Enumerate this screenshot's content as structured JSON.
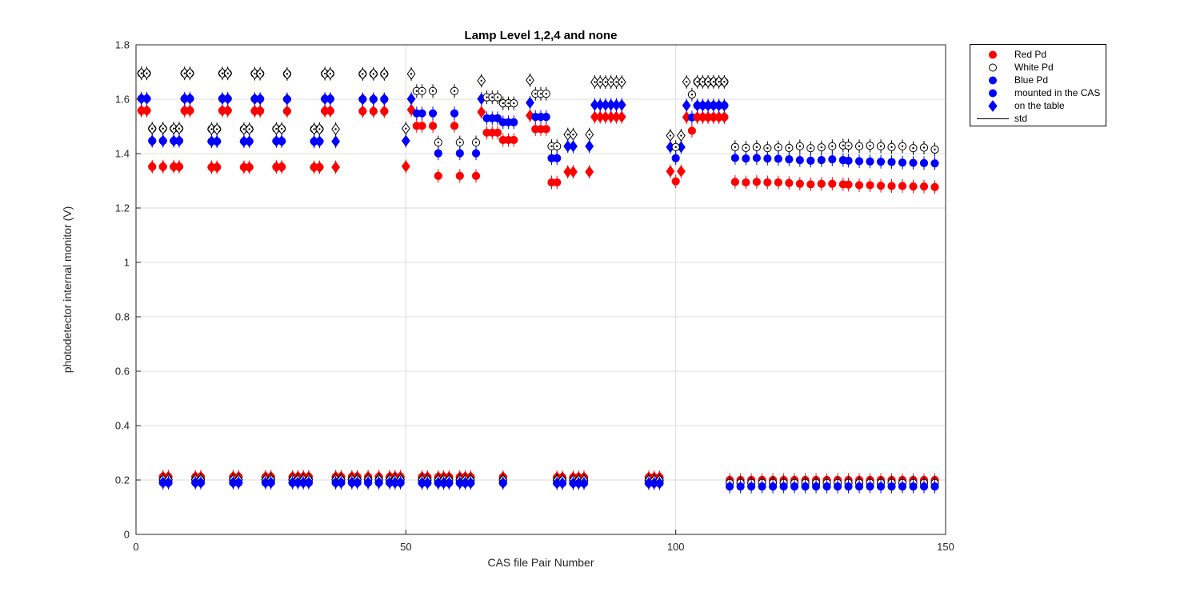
{
  "chart_data": {
    "type": "scatter",
    "title": "Lamp Level 1,2,4 and none",
    "xlabel": "CAS file Pair Number",
    "ylabel": "photodetector internal monitor (V)",
    "xlim": [
      0,
      150
    ],
    "ylim": [
      0,
      1.8
    ],
    "x_ticks": [
      0,
      50,
      100,
      150
    ],
    "x_tick_labels": [
      "0",
      "50",
      "100",
      "150"
    ],
    "y_ticks": [
      0,
      0.2,
      0.4,
      0.6,
      0.8,
      1,
      1.2,
      1.4,
      1.6,
      1.8
    ],
    "y_tick_labels": [
      "0",
      "0.2",
      "0.4",
      "0.6",
      "0.8",
      "1",
      "1.2",
      "1.4",
      "1.6",
      "1.8"
    ],
    "grid": true,
    "legend_position": "outside-top-right",
    "marker_semantics": "circle = mounted in the CAS, diamond = on the table, whisker = std; colors = Red/White/Blue photodetector",
    "colors": {
      "red": "#ff0000",
      "blue": "#0000ff",
      "white_fill": "#ffffff",
      "edge": "#000000",
      "grid": "#dcdcdc",
      "axis": "#262626"
    },
    "clusters": [
      {
        "x": [
          1,
          2
        ],
        "white": 1.695,
        "blue": 1.602,
        "red": 1.558,
        "markers": "both"
      },
      {
        "x": [
          9,
          10
        ],
        "white": 1.695,
        "blue": 1.602,
        "red": 1.558,
        "markers": "both"
      },
      {
        "x": [
          16,
          17
        ],
        "white": 1.695,
        "blue": 1.602,
        "red": 1.558,
        "markers": "both"
      },
      {
        "x": [
          22,
          23
        ],
        "white": 1.694,
        "blue": 1.601,
        "red": 1.557,
        "markers": "both"
      },
      {
        "x": [
          28
        ],
        "white": 1.693,
        "blue": 1.6,
        "red": 1.556,
        "markers": "both"
      },
      {
        "x": [
          35,
          36
        ],
        "white": 1.694,
        "blue": 1.601,
        "red": 1.557,
        "markers": "both"
      },
      {
        "x": [
          42,
          44,
          46
        ],
        "white": 1.693,
        "blue": 1.6,
        "red": 1.556,
        "markers": "both"
      },
      {
        "x": [
          3,
          5
        ],
        "white": 1.492,
        "blue": 1.447,
        "red": 1.352,
        "markers": "both"
      },
      {
        "x": [
          7,
          8
        ],
        "white": 1.492,
        "blue": 1.447,
        "red": 1.352,
        "markers": "both"
      },
      {
        "x": [
          14,
          15
        ],
        "white": 1.49,
        "blue": 1.445,
        "red": 1.35,
        "markers": "both"
      },
      {
        "x": [
          20,
          21
        ],
        "white": 1.49,
        "blue": 1.445,
        "red": 1.35,
        "markers": "both"
      },
      {
        "x": [
          26,
          27
        ],
        "white": 1.491,
        "blue": 1.446,
        "red": 1.351,
        "markers": "both"
      },
      {
        "x": [
          33,
          34
        ],
        "white": 1.49,
        "blue": 1.445,
        "red": 1.35,
        "markers": "both"
      },
      {
        "x": [
          37
        ],
        "white": 1.49,
        "blue": 1.445,
        "red": 1.35,
        "markers": "diamond"
      },
      {
        "x": [
          50
        ],
        "white": 1.492,
        "blue": 1.447,
        "red": 1.353,
        "markers": "diamond"
      },
      {
        "x": [
          51
        ],
        "white": 1.693,
        "blue": 1.601,
        "red": 1.561,
        "markers": "diamond"
      },
      {
        "x": [
          52,
          53,
          55,
          59
        ],
        "white": 1.63,
        "blue": 1.548,
        "red": 1.502,
        "markers": "circle"
      },
      {
        "x": [
          56,
          60,
          63
        ],
        "white": 1.441,
        "blue": 1.401,
        "red": 1.318,
        "markers": "circle"
      },
      {
        "x": [
          64
        ],
        "white": 1.668,
        "blue": 1.601,
        "red": 1.553,
        "markers": "diamond"
      },
      {
        "x": [
          65,
          66,
          67
        ],
        "white": 1.607,
        "blue": 1.53,
        "red": 1.477,
        "markers": "circle"
      },
      {
        "x": [
          68,
          69,
          70
        ],
        "white": 1.585,
        "blue": 1.515,
        "red": 1.45,
        "markers": "circle"
      },
      {
        "x": [
          73
        ],
        "white": 1.67,
        "blue": 1.587,
        "red": 1.54,
        "markers": "diamond"
      },
      {
        "x": [
          74,
          75,
          76
        ],
        "white": 1.62,
        "blue": 1.535,
        "red": 1.49,
        "markers": "circle"
      },
      {
        "x": [
          77,
          78
        ],
        "white": 1.427,
        "blue": 1.383,
        "red": 1.294,
        "markers": "circle"
      },
      {
        "x": [
          80,
          81,
          84
        ],
        "white": 1.47,
        "blue": 1.427,
        "red": 1.333,
        "markers": "diamond"
      },
      {
        "x": [
          85,
          86,
          87,
          88,
          89,
          90
        ],
        "white": 1.663,
        "blue": 1.579,
        "red": 1.535,
        "markers": "diamond"
      },
      {
        "x": [
          99,
          101
        ],
        "white": 1.466,
        "blue": 1.424,
        "red": 1.335,
        "markers": "diamond"
      },
      {
        "x": [
          100
        ],
        "white": 1.424,
        "blue": 1.383,
        "red": 1.298,
        "markers": "circle"
      },
      {
        "x": [
          102
        ],
        "white": 1.664,
        "blue": 1.577,
        "red": 1.534,
        "markers": "diamond"
      },
      {
        "x": [
          103
        ],
        "white": 1.617,
        "blue": 1.533,
        "red": 1.484,
        "markers": "circle"
      },
      {
        "x": [
          104,
          105,
          106,
          107,
          108,
          109
        ],
        "white": 1.664,
        "blue": 1.577,
        "red": 1.534,
        "markers": "both"
      },
      {
        "x": [
          111,
          113,
          115,
          117,
          119,
          121,
          123,
          125,
          127,
          129,
          131,
          132,
          134,
          136,
          138,
          140,
          142,
          144,
          146,
          148
        ],
        "white": [
          1.424,
          1.421,
          1.424,
          1.42,
          1.423,
          1.421,
          1.427,
          1.42,
          1.423,
          1.427,
          1.43,
          1.429,
          1.427,
          1.429,
          1.427,
          1.424,
          1.427,
          1.42,
          1.422,
          1.415
        ],
        "blue": [
          1.384,
          1.382,
          1.384,
          1.382,
          1.381,
          1.379,
          1.376,
          1.374,
          1.376,
          1.379,
          1.376,
          1.374,
          1.372,
          1.371,
          1.37,
          1.369,
          1.367,
          1.366,
          1.365,
          1.364
        ],
        "red": [
          1.296,
          1.294,
          1.296,
          1.294,
          1.294,
          1.292,
          1.289,
          1.287,
          1.289,
          1.289,
          1.287,
          1.286,
          1.284,
          1.284,
          1.282,
          1.281,
          1.281,
          1.279,
          1.279,
          1.277
        ],
        "markers": "circle"
      },
      {
        "x": [
          5,
          6
        ],
        "white": 0.201,
        "blue": 0.19,
        "red": 0.212,
        "markers": "both"
      },
      {
        "x": [
          11,
          12
        ],
        "white": 0.201,
        "blue": 0.19,
        "red": 0.212,
        "markers": "both"
      },
      {
        "x": [
          18,
          19
        ],
        "white": 0.201,
        "blue": 0.19,
        "red": 0.212,
        "markers": "both"
      },
      {
        "x": [
          24,
          25
        ],
        "white": 0.201,
        "blue": 0.19,
        "red": 0.212,
        "markers": "both"
      },
      {
        "x": [
          29,
          30,
          31,
          32
        ],
        "white": 0.201,
        "blue": 0.19,
        "red": 0.212,
        "markers": "both"
      },
      {
        "x": [
          37,
          38,
          40,
          41
        ],
        "white": 0.201,
        "blue": 0.19,
        "red": 0.212,
        "markers": "both"
      },
      {
        "x": [
          43,
          45
        ],
        "white": 0.201,
        "blue": 0.19,
        "red": 0.212,
        "markers": "both"
      },
      {
        "x": [
          47,
          48,
          49
        ],
        "white": 0.201,
        "blue": 0.19,
        "red": 0.212,
        "markers": "both"
      },
      {
        "x": [
          53,
          54
        ],
        "white": 0.2,
        "blue": 0.189,
        "red": 0.211,
        "markers": "both"
      },
      {
        "x": [
          56,
          57,
          58
        ],
        "white": 0.2,
        "blue": 0.189,
        "red": 0.211,
        "markers": "both"
      },
      {
        "x": [
          60,
          61,
          62
        ],
        "white": 0.2,
        "blue": 0.189,
        "red": 0.211,
        "markers": "both"
      },
      {
        "x": [
          68
        ],
        "white": 0.2,
        "blue": 0.189,
        "red": 0.211,
        "markers": "both"
      },
      {
        "x": [
          78,
          79
        ],
        "white": 0.199,
        "blue": 0.188,
        "red": 0.21,
        "markers": "both"
      },
      {
        "x": [
          81,
          82,
          83
        ],
        "white": 0.199,
        "blue": 0.188,
        "red": 0.21,
        "markers": "both"
      },
      {
        "x": [
          95,
          96,
          97
        ],
        "white": 0.199,
        "blue": 0.188,
        "red": 0.21,
        "markers": "both"
      },
      {
        "x": [
          110,
          112,
          114,
          116,
          118,
          120,
          122,
          124,
          126,
          128,
          130,
          132,
          134,
          136,
          138,
          140,
          142,
          144,
          146,
          148
        ],
        "white": 0.189,
        "blue": 0.176,
        "red": 0.2,
        "markers": "circle"
      }
    ]
  },
  "legend": {
    "items": [
      {
        "label": "Red Pd",
        "marker": "circle",
        "fill": "#ff0000"
      },
      {
        "label": "White Pd",
        "marker": "circle",
        "fill": "#ffffff"
      },
      {
        "label": "Blue Pd",
        "marker": "circle",
        "fill": "#0000ff"
      },
      {
        "label": "mounted in the CAS",
        "marker": "circle",
        "fill": "#0000ff"
      },
      {
        "label": "on the table",
        "marker": "diamond",
        "fill": "#0000ff"
      },
      {
        "label": "std",
        "marker": "line",
        "fill": "#000000"
      }
    ]
  }
}
